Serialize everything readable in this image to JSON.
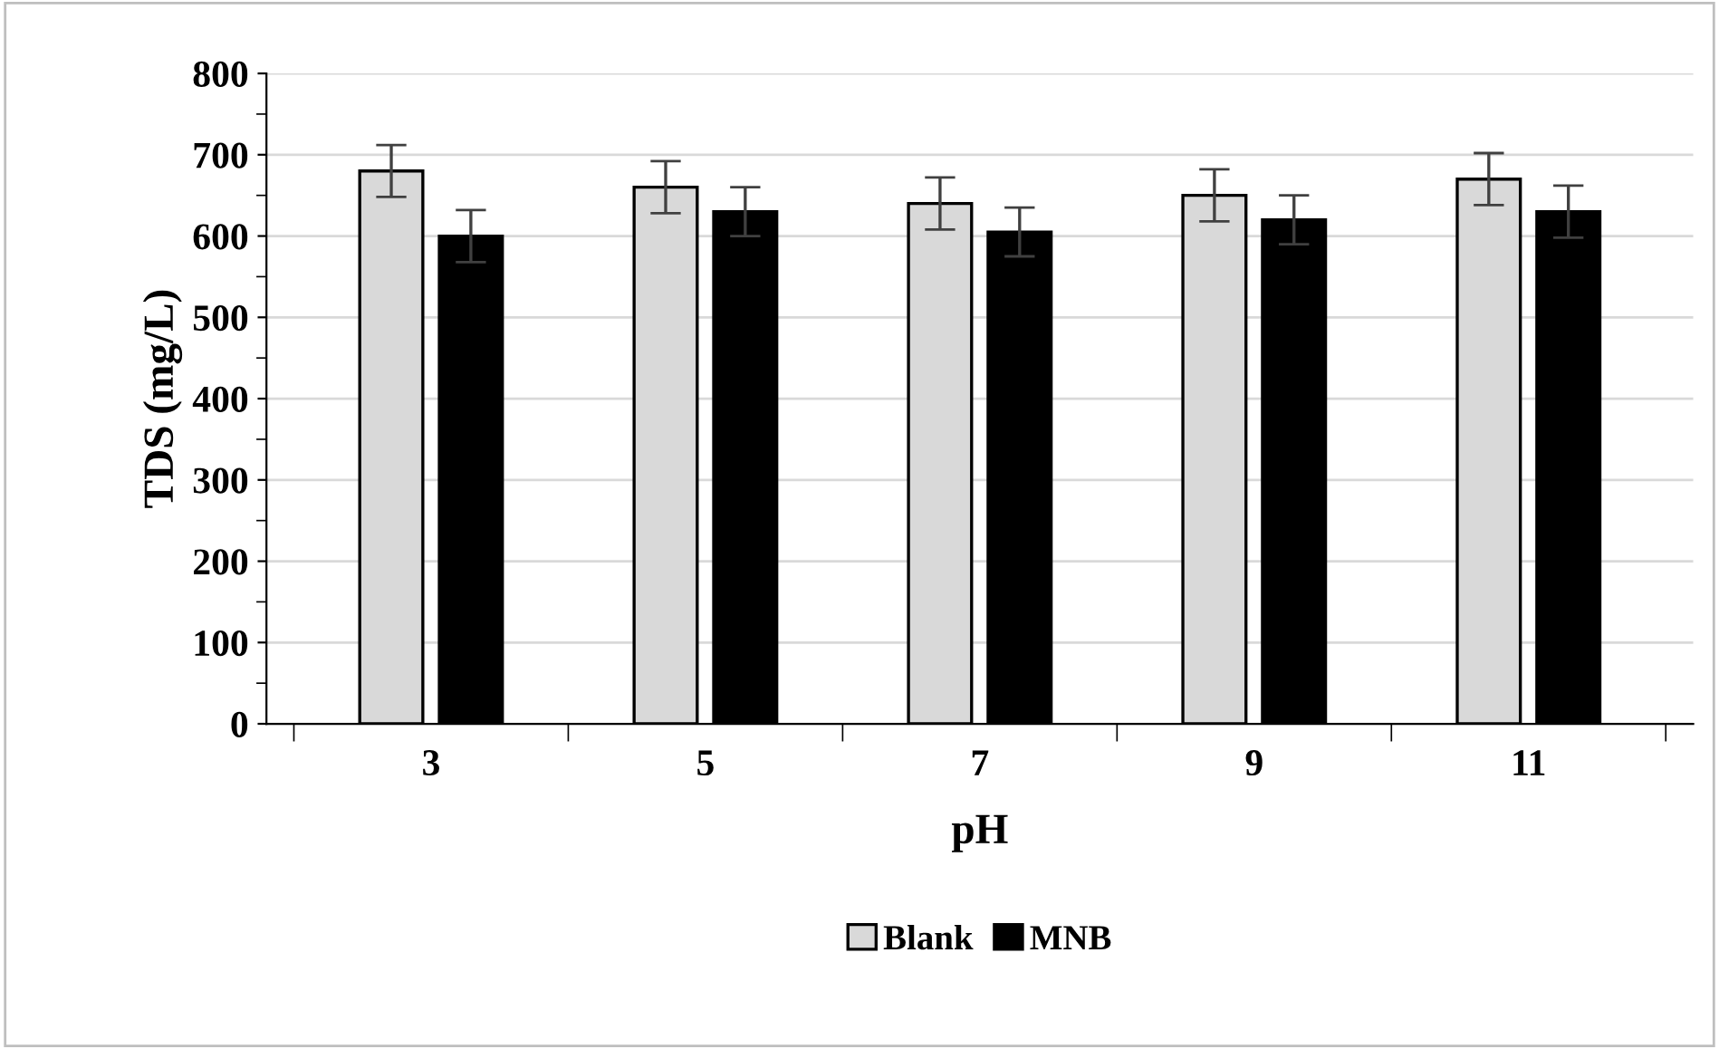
{
  "chart_data": {
    "type": "bar",
    "xlabel": "pH",
    "ylabel": "TDS (mg/L)",
    "categories": [
      "3",
      "5",
      "7",
      "9",
      "11"
    ],
    "series": [
      {
        "name": "Blank",
        "color": "#d9d9d9",
        "values": [
          680,
          660,
          640,
          650,
          670
        ],
        "errors": [
          32,
          32,
          32,
          32,
          32
        ]
      },
      {
        "name": "MNB",
        "color": "#000000",
        "values": [
          600,
          630,
          605,
          620,
          630
        ],
        "errors": [
          32,
          30,
          30,
          30,
          32
        ]
      }
    ],
    "ylim": [
      0,
      800
    ],
    "yticks": [
      0,
      100,
      200,
      300,
      400,
      500,
      600,
      700,
      800
    ],
    "grid": "y",
    "legend": "bottom"
  }
}
